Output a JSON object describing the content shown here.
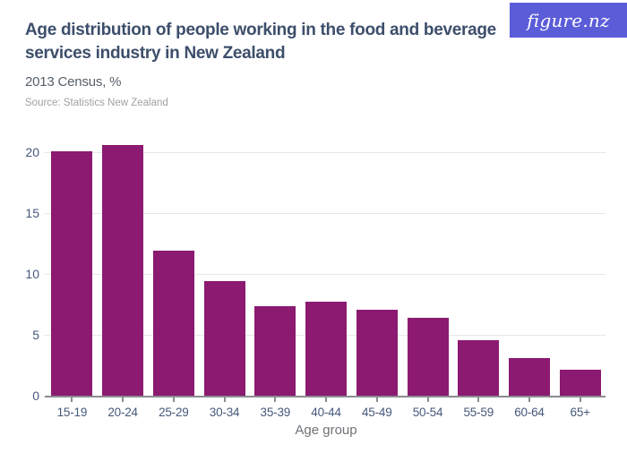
{
  "header": {
    "title": "Age distribution of people working in the food and beverage services industry in New Zealand",
    "title_lines": [
      "Age distribution of people working in the food and beverage",
      "services industry in New Zealand"
    ],
    "subtitle": "2013 Census, %",
    "source": "Source: Statistics New Zealand",
    "logo_text": "figure.nz"
  },
  "colors": {
    "bar": "#8b1a70",
    "logo_background": "#5b5cd8",
    "title_text": "#3d4e6b",
    "gridline": "#e7e7ea",
    "axis": "#8b8b92",
    "tick_label": "#46587c"
  },
  "chart_data": {
    "type": "bar",
    "title": "Age distribution of people working in the food and beverage services industry in New Zealand",
    "subtitle": "2013 Census, %",
    "source": "Statistics New Zealand",
    "categories": [
      "15-19",
      "20-24",
      "25-29",
      "30-34",
      "35-39",
      "40-44",
      "45-49",
      "50-54",
      "55-59",
      "60-64",
      "65+"
    ],
    "values": [
      20.1,
      20.6,
      11.9,
      9.4,
      7.4,
      7.7,
      7.1,
      6.4,
      4.6,
      3.1,
      2.1
    ],
    "xlabel": "Age group",
    "ylabel": "",
    "ylim": [
      0,
      21
    ],
    "yticks": [
      0,
      5,
      10,
      15,
      20
    ],
    "grid": "horizontal",
    "legend": "none",
    "bar_color": "#8b1a70"
  }
}
